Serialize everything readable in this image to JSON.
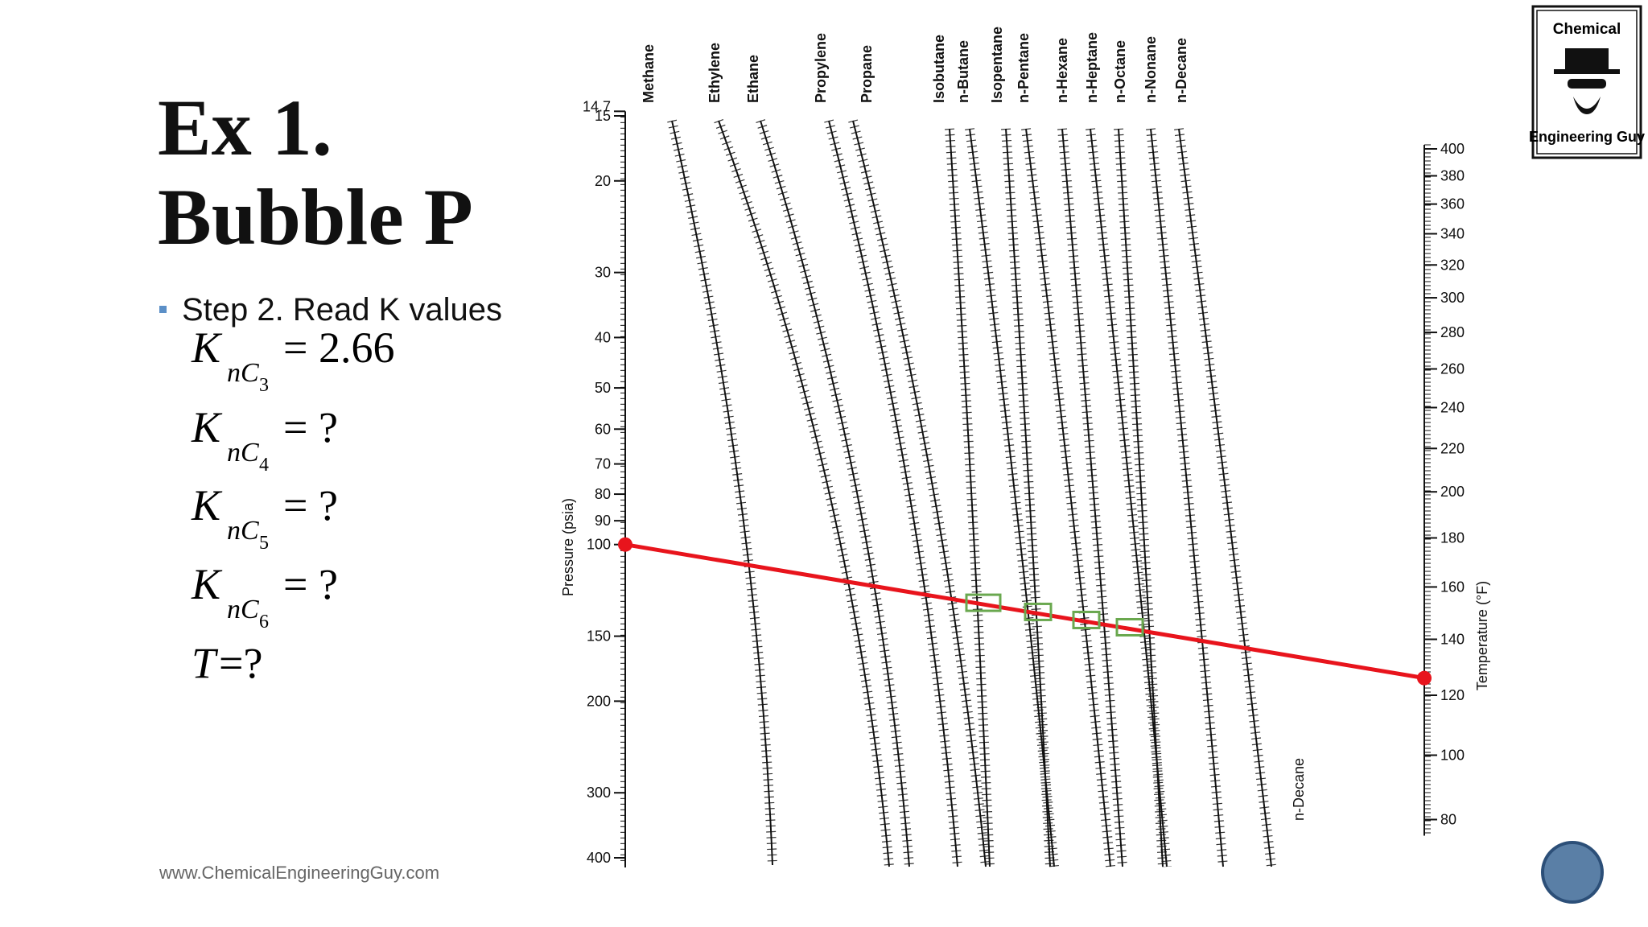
{
  "slide": {
    "title_line1": "Ex 1.",
    "title_line2": "Bubble P",
    "bullet": "Step 2. Read K values",
    "equations": [
      {
        "var": "K",
        "sub": "nC",
        "subsub": "3",
        "rhs": "= 2.66"
      },
      {
        "var": "K",
        "sub": "nC",
        "subsub": "4",
        "rhs": "= ?"
      },
      {
        "var": "K",
        "sub": "nC",
        "subsub": "5",
        "rhs": "= ?"
      },
      {
        "var": "K",
        "sub": "nC",
        "subsub": "6",
        "rhs": "= ?"
      },
      {
        "var": "T",
        "rhs": "=?"
      }
    ],
    "footer": "www.ChemicalEngineeringGuy.com",
    "logo": [
      "Chemical",
      "Engineering Guy"
    ]
  },
  "nomograph": {
    "pressure_label": "Pressure (psia)",
    "pressure_ticks": [
      14.7,
      15,
      20,
      30,
      40,
      50,
      60,
      70,
      80,
      90,
      100,
      150,
      200,
      300,
      400
    ],
    "temperature_label": "Temperature (°F)",
    "temperature_ticks": [
      80,
      100,
      120,
      140,
      160,
      180,
      200,
      220,
      240,
      260,
      280,
      300,
      320,
      340,
      360,
      380,
      400
    ],
    "components": [
      "Methane",
      "Ethylene",
      "Ethane",
      "Propylene",
      "Propane",
      "Isobutane",
      "n-Butane",
      "Isopentane",
      "n-Pentane",
      "n-Hexane",
      "n-Heptane",
      "n-Octane",
      "n-Nonane",
      "n-Decane"
    ],
    "bottom_label": "n-Decane",
    "tie_line": {
      "pressure": 100,
      "temperature": 126
    }
  }
}
